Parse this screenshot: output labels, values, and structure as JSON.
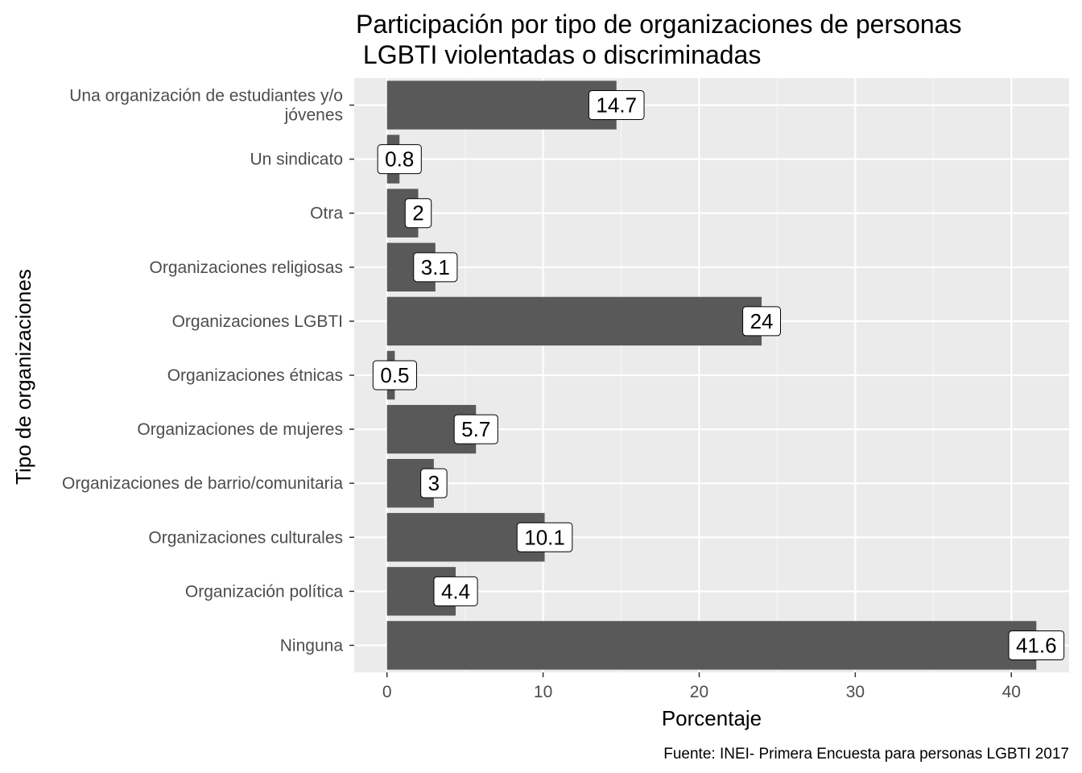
{
  "chart_data": {
    "type": "bar",
    "orientation": "horizontal",
    "title_lines": [
      "Participación por tipo de organizaciones de personas",
      " LGBTI violentadas o discriminadas"
    ],
    "xlabel": "Porcentaje",
    "ylabel": "Tipo de organizaciones",
    "caption": "Fuente: INEI- Primera Encuesta para personas LGBTI 2017",
    "xlim": [
      -2.1,
      43.7
    ],
    "xticks": [
      0,
      10,
      20,
      30,
      40
    ],
    "grid": true,
    "legend": "none",
    "categories": [
      [
        "Una organización de estudiantes y/o",
        "jóvenes"
      ],
      [
        "Un sindicato"
      ],
      [
        "Otra"
      ],
      [
        "Organizaciones religiosas"
      ],
      [
        "Organizaciones LGBTI"
      ],
      [
        "Organizaciones étnicas"
      ],
      [
        "Organizaciones de mujeres"
      ],
      [
        "Organizaciones de barrio/comunitaria"
      ],
      [
        "Organizaciones culturales"
      ],
      [
        "Organización política"
      ],
      [
        "Ninguna"
      ]
    ],
    "values": [
      14.7,
      0.8,
      2,
      3.1,
      24,
      0.5,
      5.7,
      3,
      10.1,
      4.4,
      41.6
    ],
    "value_labels": [
      "14.7",
      "0.8",
      "2",
      "3.1",
      "24",
      "0.5",
      "5.7",
      "3",
      "10.1",
      "4.4",
      "41.6"
    ],
    "colors": {
      "bar": "#595959",
      "panel_background": "#ebebeb",
      "grid_major": "#ffffff",
      "grid_minor": "#f5f5f5",
      "tick_text": "#4d4d4d",
      "label_fill": "#ffffff",
      "label_border": "#000000"
    }
  }
}
